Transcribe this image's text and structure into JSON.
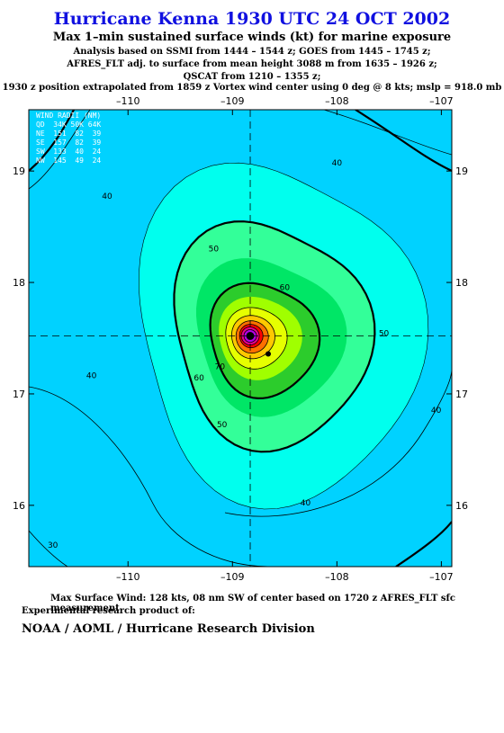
{
  "header": {
    "title": "Hurricane Kenna 1930 UTC 24 OCT 2002",
    "subtitle": "Max 1–min sustained surface winds (kt) for marine exposure",
    "line1": "Analysis based on  SSMI from 1444 – 1544 z;  GOES from 1445 – 1745 z;",
    "line2": "AFRES_FLT adj. to surface from mean height 3088 m from 1635 – 1926 z;",
    "line3": "QSCAT from 1210 – 1355 z;",
    "line4": "1930 z position extrapolated from 1859 z Vortex wind center using 0 deg @ 8 kts; mslp = 918.0 mb"
  },
  "map": {
    "lon_range": [
      -110.95,
      -106.9
    ],
    "lat_range": [
      15.45,
      19.55
    ],
    "lon_ticks": [
      -110,
      -109,
      -108,
      -107
    ],
    "lon_tick_labels": [
      "–110",
      "–109",
      "–108",
      "–107"
    ],
    "lat_ticks": [
      16,
      17,
      18,
      19
    ],
    "lat_tick_labels": [
      "16",
      "17",
      "18",
      "19"
    ],
    "center": {
      "lon": -108.83,
      "lat": 17.52
    },
    "contour_labels": [
      {
        "text": "40",
        "lon": -108.0,
        "lat": 19.05
      },
      {
        "text": "40",
        "lon": -110.2,
        "lat": 18.75
      },
      {
        "text": "50",
        "lon": -109.18,
        "lat": 18.28
      },
      {
        "text": "60",
        "lon": -108.5,
        "lat": 17.93
      },
      {
        "text": "50",
        "lon": -107.55,
        "lat": 17.52
      },
      {
        "text": "70",
        "lon": -109.12,
        "lat": 17.22
      },
      {
        "text": "60",
        "lon": -109.32,
        "lat": 17.12
      },
      {
        "text": "40",
        "lon": -110.35,
        "lat": 17.14
      },
      {
        "text": "50",
        "lon": -109.1,
        "lat": 16.7
      },
      {
        "text": "40",
        "lon": -108.3,
        "lat": 16.0
      },
      {
        "text": "40",
        "lon": -107.05,
        "lat": 16.83
      },
      {
        "text": "30",
        "lon": -110.72,
        "lat": 15.62
      }
    ],
    "colors": {
      "background": "#00d2ff",
      "w40": "#00ffee",
      "w50": "#33ff99",
      "w55": "#00e666",
      "w60": "#2ccc2c",
      "w65": "#a0ff00",
      "w70": "#e6ff00",
      "w80": "#ffc800",
      "w90": "#ff7000",
      "w100": "#ff0000",
      "w110": "#e8008c",
      "w120": "#b400e6",
      "w125": "#8000a0"
    }
  },
  "wind_radii": {
    "header": "WIND RADII (NM)",
    "cols": "QD  34K 50K 64K",
    "rows": [
      "NE  151  82  39",
      "SE  157  82  39",
      "SW  133  40  24",
      "NW  145  49  24"
    ]
  },
  "footer": {
    "max_wind": "Max Surface Wind: 128 kts, 08 nm SW of center based on 1720 z AFRES_FLT sfc measurement",
    "experimental": "Experimental research product of:",
    "org": "NOAA / AOML / Hurricane Research Division"
  }
}
